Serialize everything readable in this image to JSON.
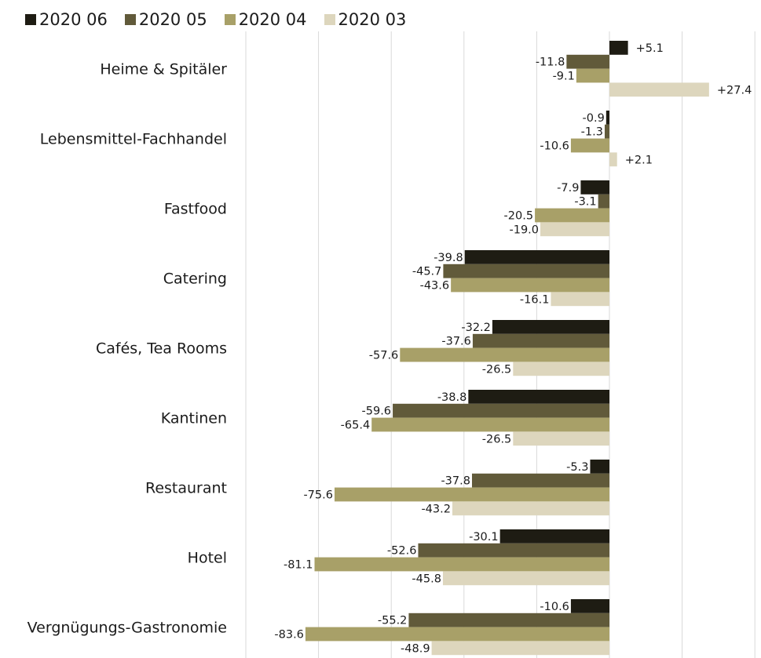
{
  "chart_data": {
    "type": "bar",
    "orientation": "horizontal",
    "legend_position": "top-left",
    "grid": true,
    "xlim": [
      -100,
      40
    ],
    "categories": [
      "Heime & Spitäler",
      "Lebensmittel-Fachhandel",
      "Fastfood",
      "Catering",
      "Cafés, Tea Rooms",
      "Kantinen",
      "Restaurant",
      "Hotel",
      "Vergnügungs-Gastronomie"
    ],
    "series": [
      {
        "name": "2020 06",
        "color": "#1e1c13",
        "values": [
          5.1,
          -0.9,
          -7.9,
          -39.8,
          -32.2,
          -38.8,
          -5.3,
          -30.1,
          -10.6
        ],
        "labels": [
          "+5.1",
          "-0.9",
          "-7.9",
          "-39.8",
          "-32.2",
          "-38.8",
          "-5.3",
          "-30.1",
          "-10.6"
        ]
      },
      {
        "name": "2020 05",
        "color": "#615a3a",
        "values": [
          -11.8,
          -1.3,
          -3.1,
          -45.7,
          -37.6,
          -59.6,
          -37.8,
          -52.6,
          -55.2
        ],
        "labels": [
          "-11.8",
          "-1.3",
          "-3.1",
          "-45.7",
          "-37.6",
          "-59.6",
          "-37.8",
          "-52.6",
          "-55.2"
        ]
      },
      {
        "name": "2020 04",
        "color": "#a8a068",
        "values": [
          -9.1,
          -10.6,
          -20.5,
          -43.6,
          -57.6,
          -65.4,
          -75.6,
          -81.1,
          -83.6
        ],
        "labels": [
          "-9.1",
          "-10.6",
          "-20.5",
          "-43.6",
          "-57.6",
          "-65.4",
          "-75.6",
          "-81.1",
          "-83.6"
        ]
      },
      {
        "name": "2020 03",
        "color": "#ddd6bd",
        "values": [
          27.4,
          2.1,
          -19.0,
          -16.1,
          -26.5,
          -26.5,
          -43.2,
          -45.8,
          -48.9
        ],
        "labels": [
          "+27.4",
          "+2.1",
          "-19.0",
          "-16.1",
          "-26.5",
          "-26.5",
          "-43.2",
          "-45.8",
          "-48.9"
        ]
      }
    ]
  }
}
